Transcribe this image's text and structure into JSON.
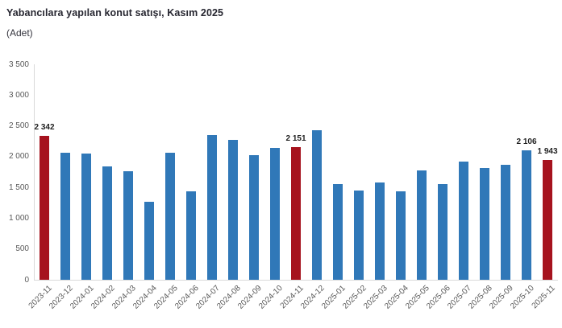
{
  "page": {
    "title": "Yabancılara yapılan konut satışı, Kasım 2025",
    "subtitle": "(Adet)"
  },
  "colors": {
    "bar": "#3078B8",
    "bar_highlight": "#A6131E",
    "axis_line": "#D9D9D9",
    "tick_text": "#595959",
    "data_label_text": "#1f1f1f",
    "title_text": "#262630"
  },
  "chart_data": {
    "type": "bar",
    "title": "Yabancılara yapılan konut satışı, Kasım 2025",
    "ylabel": "(Adet)",
    "xlabel": "",
    "grid": false,
    "legend": false,
    "ylim": [
      0,
      3500
    ],
    "categories": [
      "2023-11",
      "2023-12",
      "2024-01",
      "2024-02",
      "2024-03",
      "2024-04",
      "2024-05",
      "2024-06",
      "2024-07",
      "2024-08",
      "2024-09",
      "2024-10",
      "2024-11",
      "2024-12",
      "2025-01",
      "2025-02",
      "2025-03",
      "2025-04",
      "2025-05",
      "2025-06",
      "2025-07",
      "2025-08",
      "2025-09",
      "2025-10",
      "2025-11"
    ],
    "values": [
      2342,
      2060,
      2055,
      1845,
      1770,
      1270,
      2060,
      1435,
      2355,
      2270,
      2025,
      2140,
      2151,
      2425,
      1550,
      1455,
      1575,
      1440,
      1775,
      1560,
      1915,
      1810,
      1870,
      2106,
      1943
    ],
    "highlighted_categories": [
      "2023-11",
      "2024-11",
      "2025-11"
    ],
    "data_labels": [
      {
        "category": "2023-11",
        "text": "2 342"
      },
      {
        "category": "2024-11",
        "text": "2 151"
      },
      {
        "category": "2025-10",
        "text": "2 106"
      },
      {
        "category": "2025-11",
        "text": "1 943"
      }
    ],
    "yticks": [
      {
        "value": 0,
        "label": "0"
      },
      {
        "value": 500,
        "label": "500"
      },
      {
        "value": 1000,
        "label": "1 000"
      },
      {
        "value": 1500,
        "label": "1 500"
      },
      {
        "value": 2000,
        "label": "2 000"
      },
      {
        "value": 2500,
        "label": "2 500"
      },
      {
        "value": 3000,
        "label": "3 000"
      },
      {
        "value": 3500,
        "label": "3 500"
      }
    ]
  }
}
